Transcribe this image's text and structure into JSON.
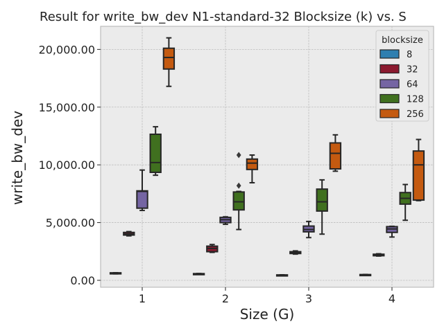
{
  "chart_data": {
    "type": "box",
    "title": "Result for write_bw_dev N1-standard-32 Blocksize (k) vs. S",
    "xlabel": "Size (G)",
    "ylabel": "write_bw_dev",
    "ylim": [
      -600,
      22000
    ],
    "yticks": [
      0,
      5000,
      10000,
      15000,
      20000
    ],
    "ytick_labels": [
      "0.00",
      "5,000.00",
      "10,000.00",
      "15,000.00",
      "20,000.00"
    ],
    "categories": [
      "1",
      "2",
      "3",
      "4"
    ],
    "grid": true,
    "legend": {
      "title": "blocksize",
      "placement": "top-right",
      "entries": [
        "8",
        "32",
        "64",
        "128",
        "256"
      ]
    },
    "series": [
      {
        "name": "8",
        "color": "#2f7fb0",
        "boxes": [
          {
            "min": 560,
            "q1": 580,
            "median": 620,
            "q3": 650,
            "max": 660,
            "outliers": []
          },
          {
            "min": 530,
            "q1": 540,
            "median": 560,
            "q3": 580,
            "max": 590,
            "outliers": []
          },
          {
            "min": 430,
            "q1": 440,
            "median": 450,
            "q3": 470,
            "max": 480,
            "outliers": []
          },
          {
            "min": 450,
            "q1": 460,
            "median": 480,
            "q3": 500,
            "max": 510,
            "outliers": []
          }
        ]
      },
      {
        "name": "32",
        "color": "#8b1a2f",
        "boxes": [
          {
            "min": 3850,
            "q1": 3920,
            "median": 4010,
            "q3": 4150,
            "max": 4220,
            "outliers": []
          },
          {
            "min": 2420,
            "q1": 2480,
            "median": 2760,
            "q3": 2960,
            "max": 3100,
            "outliers": []
          },
          {
            "min": 2270,
            "q1": 2320,
            "median": 2400,
            "q3": 2480,
            "max": 2550,
            "outliers": []
          },
          {
            "min": 2100,
            "q1": 2130,
            "median": 2200,
            "q3": 2260,
            "max": 2300,
            "outliers": []
          }
        ]
      },
      {
        "name": "64",
        "color": "#7565a3",
        "boxes": [
          {
            "min": 6050,
            "q1": 6250,
            "median": 7700,
            "q3": 7750,
            "max": 9550,
            "outliers": []
          },
          {
            "min": 4850,
            "q1": 5000,
            "median": 5250,
            "q3": 5450,
            "max": 5500,
            "outliers": []
          },
          {
            "min": 3700,
            "q1": 4200,
            "median": 4400,
            "q3": 4700,
            "max": 5100,
            "outliers": []
          },
          {
            "min": 3750,
            "q1": 4150,
            "median": 4450,
            "q3": 4650,
            "max": 4680,
            "outliers": []
          }
        ]
      },
      {
        "name": "128",
        "color": "#40701f",
        "boxes": [
          {
            "min": 9100,
            "q1": 9350,
            "median": 10200,
            "q3": 12650,
            "max": 13300,
            "outliers": []
          },
          {
            "min": 4400,
            "q1": 6100,
            "median": 6800,
            "q3": 7650,
            "max": 7700,
            "outliers": [
              8200,
              10850
            ]
          },
          {
            "min": 4000,
            "q1": 6000,
            "median": 6800,
            "q3": 7900,
            "max": 8700,
            "outliers": []
          },
          {
            "min": 5200,
            "q1": 6600,
            "median": 7100,
            "q3": 7600,
            "max": 8300,
            "outliers": []
          }
        ]
      },
      {
        "name": "256",
        "color": "#c45a10",
        "boxes": [
          {
            "min": 16800,
            "q1": 18300,
            "median": 19300,
            "q3": 20100,
            "max": 21000,
            "outliers": []
          },
          {
            "min": 8450,
            "q1": 9600,
            "median": 10150,
            "q3": 10500,
            "max": 10850,
            "outliers": []
          },
          {
            "min": 9450,
            "q1": 9650,
            "median": 11000,
            "q3": 11900,
            "max": 12600,
            "outliers": []
          },
          {
            "min": 6900,
            "q1": 6950,
            "median": 10000,
            "q3": 11200,
            "max": 12200,
            "outliers": []
          }
        ]
      }
    ]
  }
}
